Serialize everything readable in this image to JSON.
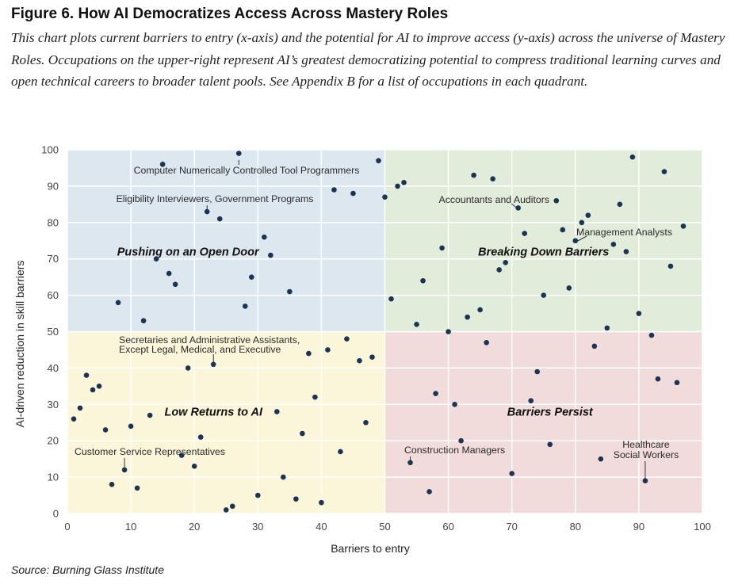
{
  "figure": {
    "title": "Figure 6. How AI Democratizes Access Across Mastery Roles",
    "description": "This chart plots current barriers to entry (x-axis) and the potential for AI to improve access (y-axis) across the universe of Mastery Roles. Occupations on the upper-right represent AI’s greatest democratizing potential to compress traditional learning curves and open technical careers to broader talent pools. See Appendix B for a list of occupations in each quadrant.",
    "source": "Source: Burning Glass Institute"
  },
  "colors": {
    "quadrant_top_left": "#dce7f0",
    "quadrant_top_right": "#e1ecdb",
    "quadrant_bottom_left": "#fbf5d9",
    "quadrant_bottom_right": "#f2dcdb",
    "point": "#1c3453",
    "grid": "#ffffff"
  },
  "chart_data": {
    "type": "scatter",
    "xlabel": "Barriers to entry",
    "ylabel": "AI-driven reduction in skill barriers",
    "xlim": [
      0,
      100
    ],
    "ylim": [
      0,
      100
    ],
    "xticks": [
      0,
      10,
      20,
      30,
      40,
      50,
      60,
      70,
      80,
      90,
      100
    ],
    "yticks": [
      0,
      10,
      20,
      30,
      40,
      50,
      60,
      70,
      80,
      90,
      100
    ],
    "grid": true,
    "quadrant_split": {
      "x": 50,
      "y": 50
    },
    "quadrants": [
      {
        "label": "Pushing on an Open Door",
        "position": "top-left",
        "x": 19,
        "y": 72
      },
      {
        "label": "Breaking Down Barriers",
        "position": "top-right",
        "x": 75,
        "y": 72
      },
      {
        "label": "Low Returns to AI",
        "position": "bottom-left",
        "x": 23,
        "y": 28
      },
      {
        "label": "Barriers Persist",
        "position": "bottom-right",
        "x": 76,
        "y": 28
      }
    ],
    "points": [
      {
        "x": 27,
        "y": 99
      },
      {
        "x": 15,
        "y": 96
      },
      {
        "x": 49,
        "y": 97
      },
      {
        "x": 42,
        "y": 89
      },
      {
        "x": 45,
        "y": 88
      },
      {
        "x": 50,
        "y": 87
      },
      {
        "x": 22,
        "y": 83
      },
      {
        "x": 24,
        "y": 81
      },
      {
        "x": 31,
        "y": 76
      },
      {
        "x": 32,
        "y": 71
      },
      {
        "x": 14,
        "y": 70
      },
      {
        "x": 16,
        "y": 66
      },
      {
        "x": 17,
        "y": 63
      },
      {
        "x": 29,
        "y": 65
      },
      {
        "x": 35,
        "y": 61
      },
      {
        "x": 8,
        "y": 58
      },
      {
        "x": 28,
        "y": 57
      },
      {
        "x": 12,
        "y": 53
      },
      {
        "x": 64,
        "y": 93
      },
      {
        "x": 67,
        "y": 92
      },
      {
        "x": 52,
        "y": 90
      },
      {
        "x": 53,
        "y": 91
      },
      {
        "x": 89,
        "y": 98
      },
      {
        "x": 94,
        "y": 94
      },
      {
        "x": 71,
        "y": 84
      },
      {
        "x": 77,
        "y": 86
      },
      {
        "x": 87,
        "y": 85
      },
      {
        "x": 82,
        "y": 82
      },
      {
        "x": 81,
        "y": 80
      },
      {
        "x": 78,
        "y": 78
      },
      {
        "x": 72,
        "y": 77
      },
      {
        "x": 80,
        "y": 75
      },
      {
        "x": 97,
        "y": 79
      },
      {
        "x": 59,
        "y": 73
      },
      {
        "x": 86,
        "y": 74
      },
      {
        "x": 88,
        "y": 72
      },
      {
        "x": 69,
        "y": 69
      },
      {
        "x": 68,
        "y": 67
      },
      {
        "x": 95,
        "y": 68
      },
      {
        "x": 56,
        "y": 64
      },
      {
        "x": 79,
        "y": 62
      },
      {
        "x": 75,
        "y": 60
      },
      {
        "x": 51,
        "y": 59
      },
      {
        "x": 65,
        "y": 56
      },
      {
        "x": 90,
        "y": 55
      },
      {
        "x": 63,
        "y": 54
      },
      {
        "x": 55,
        "y": 52
      },
      {
        "x": 85,
        "y": 51
      },
      {
        "x": 44,
        "y": 48
      },
      {
        "x": 41,
        "y": 45
      },
      {
        "x": 38,
        "y": 44
      },
      {
        "x": 46,
        "y": 42
      },
      {
        "x": 48,
        "y": 43
      },
      {
        "x": 23,
        "y": 41
      },
      {
        "x": 19,
        "y": 40
      },
      {
        "x": 3,
        "y": 38
      },
      {
        "x": 5,
        "y": 35
      },
      {
        "x": 4,
        "y": 34
      },
      {
        "x": 39,
        "y": 32
      },
      {
        "x": 2,
        "y": 29
      },
      {
        "x": 33,
        "y": 28
      },
      {
        "x": 13,
        "y": 27
      },
      {
        "x": 1,
        "y": 26
      },
      {
        "x": 47,
        "y": 25
      },
      {
        "x": 10,
        "y": 24
      },
      {
        "x": 6,
        "y": 23
      },
      {
        "x": 37,
        "y": 22
      },
      {
        "x": 21,
        "y": 21
      },
      {
        "x": 43,
        "y": 17
      },
      {
        "x": 18,
        "y": 16
      },
      {
        "x": 20,
        "y": 13
      },
      {
        "x": 9,
        "y": 12
      },
      {
        "x": 34,
        "y": 10
      },
      {
        "x": 7,
        "y": 8
      },
      {
        "x": 11,
        "y": 7
      },
      {
        "x": 30,
        "y": 5
      },
      {
        "x": 36,
        "y": 4
      },
      {
        "x": 40,
        "y": 3
      },
      {
        "x": 26,
        "y": 2
      },
      {
        "x": 25,
        "y": 1
      },
      {
        "x": 60,
        "y": 50
      },
      {
        "x": 92,
        "y": 49
      },
      {
        "x": 66,
        "y": 47
      },
      {
        "x": 83,
        "y": 46
      },
      {
        "x": 74,
        "y": 39
      },
      {
        "x": 93,
        "y": 37
      },
      {
        "x": 96,
        "y": 36
      },
      {
        "x": 58,
        "y": 33
      },
      {
        "x": 73,
        "y": 31
      },
      {
        "x": 61,
        "y": 30
      },
      {
        "x": 62,
        "y": 20
      },
      {
        "x": 76,
        "y": 19
      },
      {
        "x": 84,
        "y": 15
      },
      {
        "x": 54,
        "y": 14
      },
      {
        "x": 70,
        "y": 11
      },
      {
        "x": 91,
        "y": 9
      },
      {
        "x": 57,
        "y": 6
      }
    ],
    "annotations": [
      {
        "lines": [
          "Computer Numerically Controlled Tool Programmers"
        ],
        "point": {
          "x": 27,
          "y": 99
        },
        "anchor": "middle"
      },
      {
        "lines": [
          "Eligibility Interviewers, Government Programs"
        ],
        "point": {
          "x": 22,
          "y": 83
        },
        "anchor": "middle"
      },
      {
        "lines": [
          "Accountants and Auditors"
        ],
        "point": {
          "x": 71,
          "y": 84
        },
        "anchor": "end"
      },
      {
        "lines": [
          "Management Analysts"
        ],
        "point": {
          "x": 80,
          "y": 75
        },
        "anchor": "start"
      },
      {
        "lines": [
          "Secretaries and Administrative Assistants,",
          "Except Legal, Medical, and Executive"
        ],
        "point": {
          "x": 23,
          "y": 41
        },
        "anchor": "start"
      },
      {
        "lines": [
          "Customer Service Representatives"
        ],
        "point": {
          "x": 9,
          "y": 12
        },
        "anchor": "start"
      },
      {
        "lines": [
          "Construction Managers"
        ],
        "point": {
          "x": 54,
          "y": 14
        },
        "anchor": "start"
      },
      {
        "lines": [
          "Healthcare",
          "Social Workers"
        ],
        "point": {
          "x": 91,
          "y": 9
        },
        "anchor": "middle"
      }
    ]
  }
}
